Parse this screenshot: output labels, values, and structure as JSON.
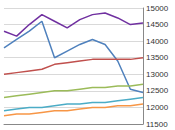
{
  "chart_data": {
    "type": "line",
    "categories": [
      null,
      null,
      null,
      null,
      null,
      null,
      null,
      null,
      null,
      null,
      null,
      null
    ],
    "series": [
      {
        "color": "#7030a0",
        "values": [
          14300,
          14150,
          14500,
          14800,
          14600,
          14400,
          14650,
          14800,
          14850,
          14700,
          14500,
          14550
        ]
      },
      {
        "color": "#4f81bd",
        "values": [
          13800,
          14050,
          14300,
          14600,
          13500,
          13700,
          13900,
          14050,
          13900,
          13400,
          12550,
          12450
        ]
      },
      {
        "color": "#c0504d",
        "values": [
          13000,
          13050,
          13100,
          13150,
          13300,
          13350,
          13400,
          13450,
          13450,
          13450,
          13450,
          13500
        ]
      },
      {
        "color": "#9bbb59",
        "values": [
          12300,
          12350,
          12400,
          12450,
          12500,
          12500,
          12550,
          12600,
          12600,
          12650,
          12650,
          12700
        ]
      },
      {
        "color": "#4bacc6",
        "values": [
          11900,
          11950,
          12000,
          12000,
          12050,
          12100,
          12100,
          12150,
          12150,
          12200,
          12250,
          12300
        ]
      },
      {
        "color": "#f79646",
        "values": [
          11750,
          11800,
          11800,
          11850,
          11900,
          11900,
          11950,
          12000,
          12000,
          12050,
          12050,
          12100
        ]
      }
    ],
    "ylim": [
      11500,
      15000
    ],
    "yticks": [
      11500,
      12000,
      12500,
      13000,
      13500,
      14000,
      14500,
      15000
    ],
    "grid": true,
    "tick_labels": "y"
  }
}
